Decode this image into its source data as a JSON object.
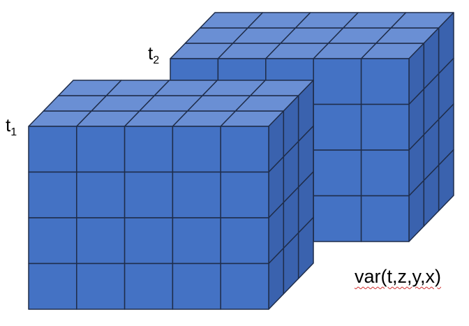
{
  "labels": {
    "t2_base": "t",
    "t2_sub": "2",
    "t1_base": "t",
    "t1_sub": "1",
    "caption": "var(t,z,y,x)"
  },
  "grid": {
    "columns": 5,
    "rows": 4,
    "depth": 3
  },
  "colors": {
    "front": "#4472c4",
    "top": "#6a8fd4",
    "side": "#3a62ae",
    "edge": "#1f2d4a"
  }
}
